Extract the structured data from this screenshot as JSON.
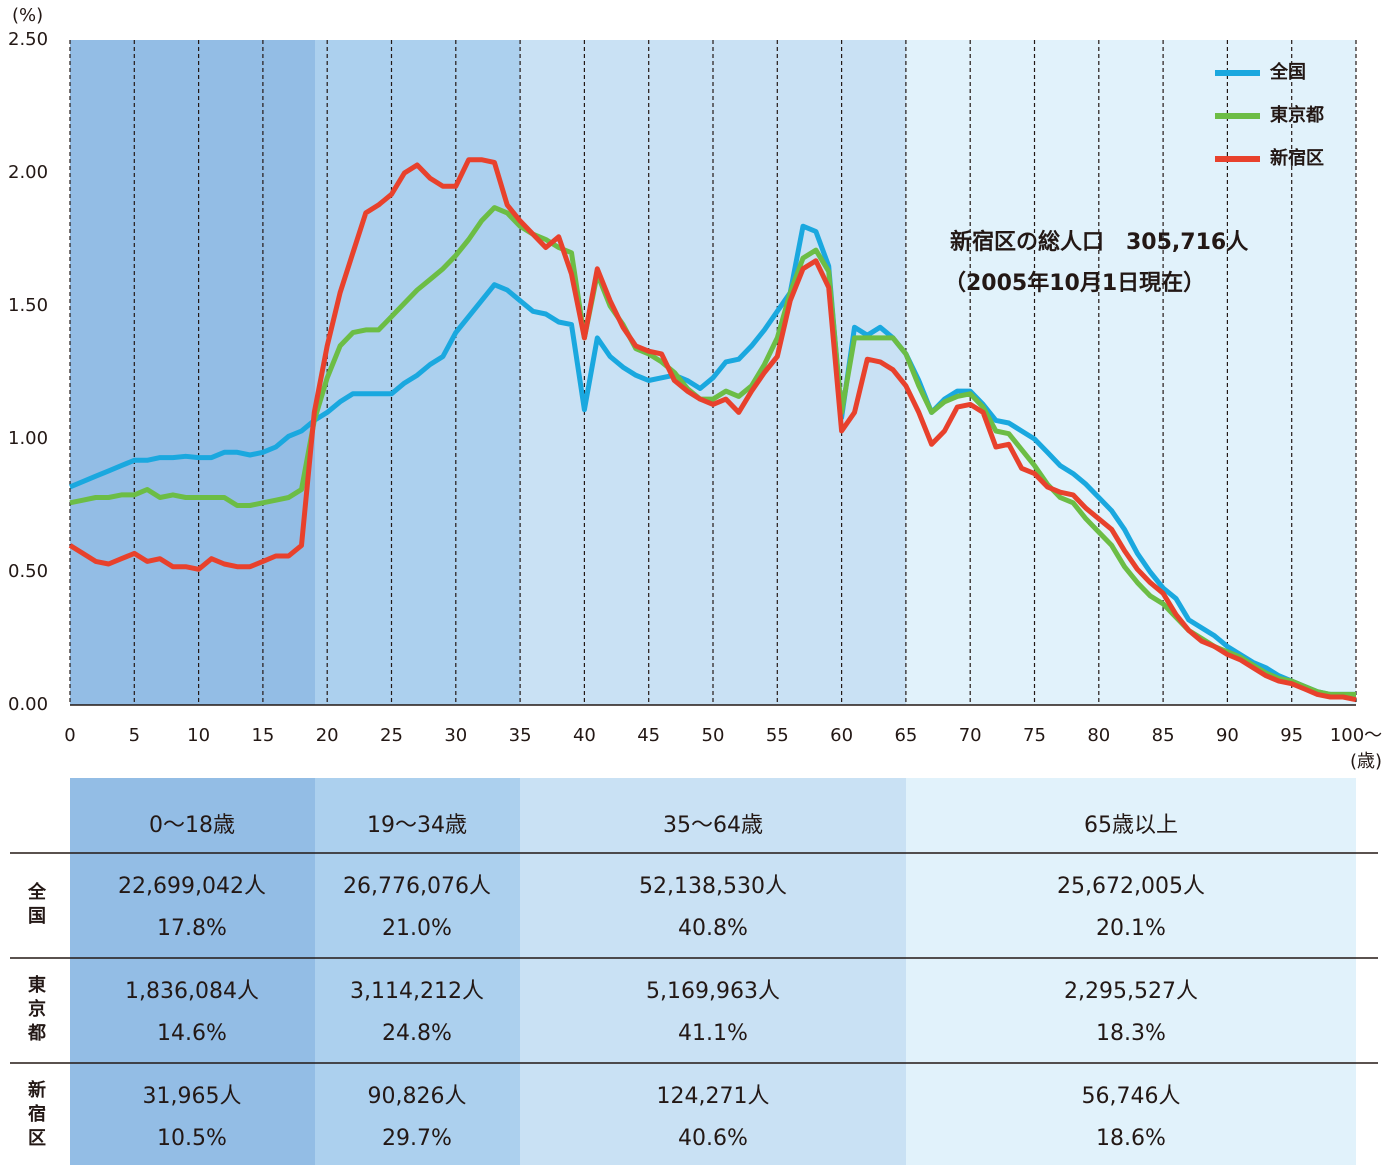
{
  "chart_data": {
    "type": "line",
    "y_label": "(%)",
    "x_label": "(歳)",
    "annotation": [
      "新宿区の総人口　305,716人",
      "（2005年10月1日現在）"
    ],
    "x": [
      0,
      1,
      2,
      3,
      4,
      5,
      6,
      7,
      8,
      9,
      10,
      11,
      12,
      13,
      14,
      15,
      16,
      17,
      18,
      19,
      20,
      21,
      22,
      23,
      24,
      25,
      26,
      27,
      28,
      29,
      30,
      31,
      32,
      33,
      34,
      35,
      36,
      37,
      38,
      39,
      40,
      41,
      42,
      43,
      44,
      45,
      46,
      47,
      48,
      49,
      50,
      51,
      52,
      53,
      54,
      55,
      56,
      57,
      58,
      59,
      60,
      61,
      62,
      63,
      64,
      65,
      66,
      67,
      68,
      69,
      70,
      71,
      72,
      73,
      74,
      75,
      76,
      77,
      78,
      79,
      80,
      81,
      82,
      83,
      84,
      85,
      86,
      87,
      88,
      89,
      90,
      91,
      92,
      93,
      94,
      95,
      96,
      97,
      98,
      99,
      100
    ],
    "xlim": [
      0,
      100
    ],
    "xticks": [
      0,
      5,
      10,
      15,
      20,
      25,
      30,
      35,
      40,
      45,
      50,
      55,
      60,
      65,
      70,
      75,
      80,
      85,
      90,
      95,
      {
        "value": 100,
        "label": "100〜"
      }
    ],
    "ylim": [
      0,
      2.5
    ],
    "yticks": [
      {
        "value": 0,
        "label": "0.00"
      },
      {
        "value": 0.5,
        "label": "0.50"
      },
      {
        "value": 1,
        "label": "1.00"
      },
      {
        "value": 1.5,
        "label": "1.50"
      },
      {
        "value": 2,
        "label": "2.00"
      },
      {
        "value": 2.5,
        "label": "2.50"
      }
    ],
    "grid": "x",
    "legend": "top-right",
    "series": [
      {
        "name": "全国",
        "color": "#1aa8df",
        "values": [
          0.82,
          0.84,
          0.86,
          0.88,
          0.9,
          0.92,
          0.92,
          0.93,
          0.93,
          0.935,
          0.93,
          0.93,
          0.95,
          0.95,
          0.94,
          0.95,
          0.97,
          1.01,
          1.03,
          1.07,
          1.1,
          1.14,
          1.17,
          1.17,
          1.17,
          1.17,
          1.21,
          1.24,
          1.28,
          1.31,
          1.4,
          1.46,
          1.52,
          1.58,
          1.56,
          1.52,
          1.48,
          1.47,
          1.44,
          1.43,
          1.11,
          1.38,
          1.31,
          1.27,
          1.24,
          1.22,
          1.23,
          1.24,
          1.22,
          1.19,
          1.23,
          1.29,
          1.3,
          1.35,
          1.41,
          1.48,
          1.55,
          1.8,
          1.78,
          1.65,
          1.08,
          1.42,
          1.39,
          1.42,
          1.38,
          1.32,
          1.22,
          1.1,
          1.15,
          1.18,
          1.18,
          1.13,
          1.07,
          1.06,
          1.03,
          1.0,
          0.95,
          0.9,
          0.87,
          0.83,
          0.78,
          0.73,
          0.66,
          0.57,
          0.5,
          0.44,
          0.4,
          0.32,
          0.29,
          0.26,
          0.22,
          0.19,
          0.16,
          0.14,
          0.11,
          0.09,
          0.07,
          0.05,
          0.04,
          0.04,
          0.04
        ]
      },
      {
        "name": "東京都",
        "color": "#6cbd45",
        "values": [
          0.76,
          0.77,
          0.78,
          0.78,
          0.79,
          0.79,
          0.81,
          0.78,
          0.79,
          0.78,
          0.78,
          0.78,
          0.78,
          0.75,
          0.75,
          0.76,
          0.77,
          0.78,
          0.81,
          1.07,
          1.23,
          1.35,
          1.4,
          1.41,
          1.41,
          1.46,
          1.51,
          1.56,
          1.6,
          1.64,
          1.69,
          1.75,
          1.82,
          1.87,
          1.85,
          1.8,
          1.77,
          1.75,
          1.72,
          1.7,
          1.38,
          1.62,
          1.5,
          1.43,
          1.34,
          1.32,
          1.29,
          1.25,
          1.19,
          1.15,
          1.15,
          1.18,
          1.16,
          1.2,
          1.28,
          1.38,
          1.55,
          1.68,
          1.71,
          1.63,
          1.1,
          1.38,
          1.38,
          1.38,
          1.38,
          1.32,
          1.2,
          1.1,
          1.14,
          1.16,
          1.17,
          1.12,
          1.03,
          1.02,
          0.96,
          0.9,
          0.83,
          0.78,
          0.76,
          0.7,
          0.65,
          0.6,
          0.52,
          0.46,
          0.41,
          0.38,
          0.33,
          0.28,
          0.25,
          0.22,
          0.2,
          0.18,
          0.15,
          0.12,
          0.1,
          0.09,
          0.07,
          0.05,
          0.04,
          0.04,
          0.04
        ]
      },
      {
        "name": "新宿区",
        "color": "#e8412c",
        "values": [
          0.6,
          0.57,
          0.54,
          0.53,
          0.55,
          0.57,
          0.54,
          0.55,
          0.52,
          0.52,
          0.51,
          0.55,
          0.53,
          0.52,
          0.52,
          0.54,
          0.56,
          0.56,
          0.6,
          1.1,
          1.35,
          1.55,
          1.7,
          1.85,
          1.88,
          1.92,
          2.0,
          2.03,
          1.98,
          1.95,
          1.95,
          2.05,
          2.05,
          2.04,
          1.88,
          1.82,
          1.77,
          1.72,
          1.76,
          1.62,
          1.38,
          1.64,
          1.52,
          1.42,
          1.35,
          1.33,
          1.32,
          1.22,
          1.18,
          1.15,
          1.13,
          1.15,
          1.1,
          1.18,
          1.25,
          1.31,
          1.52,
          1.64,
          1.67,
          1.57,
          1.03,
          1.1,
          1.3,
          1.29,
          1.26,
          1.2,
          1.1,
          0.98,
          1.03,
          1.12,
          1.13,
          1.1,
          0.97,
          0.98,
          0.89,
          0.87,
          0.82,
          0.8,
          0.79,
          0.74,
          0.7,
          0.66,
          0.58,
          0.51,
          0.46,
          0.42,
          0.34,
          0.28,
          0.24,
          0.22,
          0.19,
          0.17,
          0.14,
          0.11,
          0.09,
          0.08,
          0.06,
          0.04,
          0.03,
          0.03,
          0.02
        ]
      }
    ]
  },
  "table": {
    "columns": [
      "0〜18歳",
      "19〜34歳",
      "35〜64歳",
      "65歳以上"
    ],
    "rows": [
      {
        "name": "全国",
        "cells": [
          [
            "22,699,042人",
            "17.8%"
          ],
          [
            "26,776,076人",
            "21.0%"
          ],
          [
            "52,138,530人",
            "40.8%"
          ],
          [
            "25,672,005人",
            "20.1%"
          ]
        ]
      },
      {
        "name": "東京都",
        "cells": [
          [
            "1,836,084人",
            "14.6%"
          ],
          [
            "3,114,212人",
            "24.8%"
          ],
          [
            "5,169,963人",
            "41.1%"
          ],
          [
            "2,295,527人",
            "18.3%"
          ]
        ]
      },
      {
        "name": "新宿区",
        "cells": [
          [
            "31,965人",
            "10.5%"
          ],
          [
            "90,826人",
            "29.7%"
          ],
          [
            "124,271人",
            "40.6%"
          ],
          [
            "56,746人",
            "18.6%"
          ]
        ]
      }
    ]
  }
}
